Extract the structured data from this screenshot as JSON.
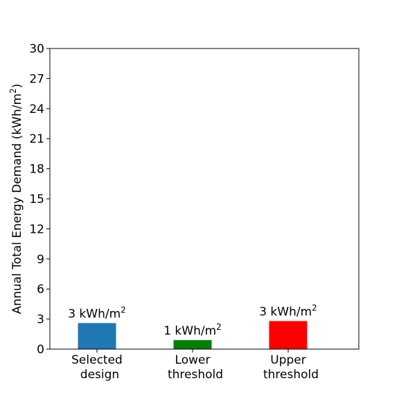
{
  "chart_data": {
    "type": "bar",
    "categories": [
      {
        "line1": "Selected",
        "line2": "design"
      },
      {
        "line1": "Lower",
        "line2": "threshold"
      },
      {
        "line1": "Upper",
        "line2": "threshold"
      }
    ],
    "values": [
      2.6,
      0.9,
      2.8
    ],
    "colors": [
      "#1f77b4",
      "#008000",
      "#ff0000"
    ],
    "data_labels": [
      {
        "value": "3",
        "unit": "kWh/m",
        "sup": "2"
      },
      {
        "value": "1",
        "unit": "kWh/m",
        "sup": "2"
      },
      {
        "value": "3",
        "unit": "kWh/m",
        "sup": "2"
      }
    ],
    "ylabel": {
      "text": "Annual Total Energy Demand (kWh/m",
      "sup": "2",
      "close": ")"
    },
    "ylim": [
      0,
      30
    ],
    "yticks": [
      0,
      3,
      6,
      9,
      12,
      15,
      18,
      21,
      24,
      27,
      30
    ],
    "grid": false
  }
}
